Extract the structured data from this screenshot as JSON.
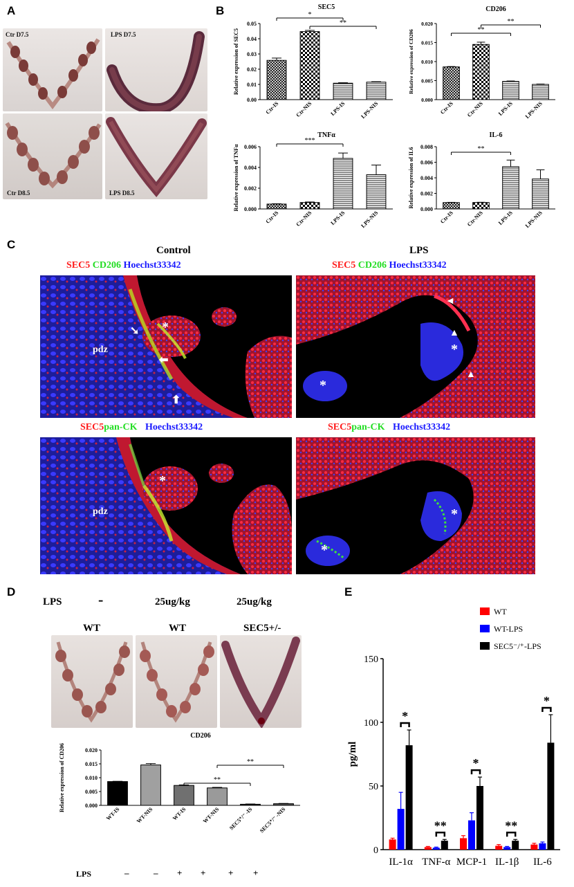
{
  "panels": {
    "A": "A",
    "B": "B",
    "C": "C",
    "D": "D",
    "E": "E"
  },
  "panel_a": {
    "photos": [
      {
        "label": "Ctr D7.5"
      },
      {
        "label": "LPS D7.5"
      },
      {
        "label": "Ctr D8.5"
      },
      {
        "label": "LPS D8.5"
      }
    ]
  },
  "panel_c": {
    "col_control": "Control",
    "col_lps": "LPS",
    "stain_top": {
      "sec5": "SEC5",
      "marker": "CD206",
      "nuc": "Hoechst33342"
    },
    "stain_bottom": {
      "sec5": "SEC5",
      "marker": "pan-CK",
      "nuc": "Hoechst33342"
    },
    "pdz": "pdz",
    "asterisk": "*"
  },
  "panel_d": {
    "lps_label": "LPS",
    "doses": [
      "-",
      "25ug/kg",
      "25ug/kg"
    ],
    "genotypes": [
      "WT",
      "WT",
      "SEC5+/-"
    ],
    "bottom_lps_row_label": "LPS",
    "bottom_lps_signs": [
      "–",
      "–",
      "+",
      "+",
      "+",
      "+"
    ]
  },
  "colors": {
    "wt": "#ff0000",
    "wt_lps": "#0000ff",
    "sec5_lps": "#000000"
  },
  "chart_data": [
    {
      "id": "B-SEC5",
      "type": "bar",
      "title": "SEC5",
      "ylabel": "Relative expression of SEC5",
      "categories": [
        "Ctr-IS",
        "Ctr-NIS",
        "LPS-IS",
        "LPS-NIS"
      ],
      "values": [
        0.0258,
        0.0447,
        0.0108,
        0.0115
      ],
      "errors": [
        0.0015,
        0.0008,
        0.0003,
        0.0003
      ],
      "patterns": [
        "cross",
        "check",
        "hline",
        "hline"
      ],
      "ylim": [
        0,
        0.05
      ],
      "yticks": [
        "0.00",
        "0.01",
        "0.02",
        "0.03",
        "0.04",
        "0.05"
      ],
      "sig": [
        {
          "from": 0,
          "to": 2,
          "label": "*",
          "level": 0
        },
        {
          "from": 1,
          "to": 3,
          "label": "**",
          "level": 1
        }
      ]
    },
    {
      "id": "B-CD206",
      "type": "bar",
      "title": "CD206",
      "ylabel": "Relative expression of CD206",
      "categories": [
        "Ctr-IS",
        "Ctr-NIS",
        "LPS-IS",
        "LPS-NIS"
      ],
      "values": [
        0.0086,
        0.0145,
        0.0048,
        0.004
      ],
      "errors": [
        0.0001,
        0.0006,
        0.0001,
        0.0001
      ],
      "patterns": [
        "cross",
        "check",
        "hline",
        "hline"
      ],
      "ylim": [
        0,
        0.02
      ],
      "yticks": [
        "0.000",
        "0.005",
        "0.010",
        "0.015",
        "0.020"
      ],
      "sig": [
        {
          "from": 0,
          "to": 2,
          "label": "**",
          "level": 0
        },
        {
          "from": 1,
          "to": 3,
          "label": "**",
          "level": 1
        }
      ]
    },
    {
      "id": "B-TNF",
      "type": "bar",
      "title": "TNFα",
      "ylabel": "Relative expression of TNFα",
      "categories": [
        "Ctr-IS",
        "Ctr-NIS",
        "LPS-IS",
        "LPS-NIS"
      ],
      "values": [
        0.00047,
        0.00062,
        0.00487,
        0.0033
      ],
      "errors": [
        3e-05,
        5e-05,
        0.00052,
        0.00093
      ],
      "patterns": [
        "cross",
        "check",
        "hline",
        "hline"
      ],
      "ylim": [
        0,
        0.006
      ],
      "yticks": [
        "0.000",
        "0.002",
        "0.004",
        "0.006"
      ],
      "sig": [
        {
          "from": 0,
          "to": 2,
          "label": "***",
          "level": 0
        }
      ]
    },
    {
      "id": "B-IL6",
      "type": "bar",
      "title": "IL-6",
      "ylabel": "Relative expression of IL6",
      "categories": [
        "Ctr-IS",
        "Ctr-NIS",
        "LPS-IS",
        "LPS-NIS"
      ],
      "values": [
        0.00082,
        0.00083,
        0.00543,
        0.00385
      ],
      "errors": [
        3e-05,
        3e-05,
        0.00085,
        0.00118
      ],
      "patterns": [
        "cross",
        "check",
        "hline",
        "hline"
      ],
      "ylim": [
        0,
        0.008
      ],
      "yticks": [
        "0.000",
        "0.002",
        "0.004",
        "0.006",
        "0.008"
      ],
      "sig": [
        {
          "from": 0,
          "to": 2,
          "label": "**",
          "level": 0
        }
      ]
    },
    {
      "id": "D-CD206",
      "type": "bar",
      "title": "CD206",
      "ylabel": "Relative expression of CD206",
      "categories": [
        "WT-IS",
        "WT-NIS",
        "WT-IS",
        "WT-NIS",
        "SEC5⁺/⁻ -IS",
        "SEC5⁺/⁻ -NIS"
      ],
      "values": [
        0.0086,
        0.0146,
        0.0072,
        0.0063,
        0.0004,
        0.0006
      ],
      "errors": [
        0.0001,
        0.0005,
        0.0002,
        0.0002,
        0.0001,
        0.0001
      ],
      "colors": [
        "#000000",
        "#a0a0a0",
        "#707070",
        "#9a9a9a",
        "#222222",
        "#555555"
      ],
      "ylim": [
        0,
        0.02
      ],
      "yticks": [
        "0.000",
        "0.005",
        "0.010",
        "0.015",
        "0.020"
      ],
      "sig": [
        {
          "from": 2,
          "to": 4,
          "label": "**",
          "level": 0
        },
        {
          "from": 3,
          "to": 5,
          "label": "**",
          "level": 1
        }
      ]
    },
    {
      "id": "E-cytokines",
      "type": "bar",
      "ylabel": "pg/ml",
      "categories": [
        "IL-1α",
        "TNF-α",
        "MCP-1",
        "IL-1β",
        "IL-6"
      ],
      "series": [
        {
          "name": "WT",
          "values": [
            8,
            2,
            9,
            3,
            4
          ],
          "errors": [
            1,
            0.5,
            2,
            1,
            1
          ]
        },
        {
          "name": "WT-LPS",
          "values": [
            32,
            1.5,
            23,
            2,
            5
          ],
          "errors": [
            13,
            0.5,
            6,
            0.5,
            1
          ]
        },
        {
          "name": "SEC5⁻/⁺-LPS",
          "values": [
            82,
            7,
            50,
            7,
            84
          ],
          "errors": [
            12,
            1,
            7,
            1,
            22
          ]
        }
      ],
      "ylim": [
        0,
        150
      ],
      "yticks": [
        "0",
        "50",
        "100",
        "150"
      ],
      "sig": [
        "*",
        "**",
        "*",
        "**",
        "*"
      ],
      "legend": "top-right"
    }
  ]
}
